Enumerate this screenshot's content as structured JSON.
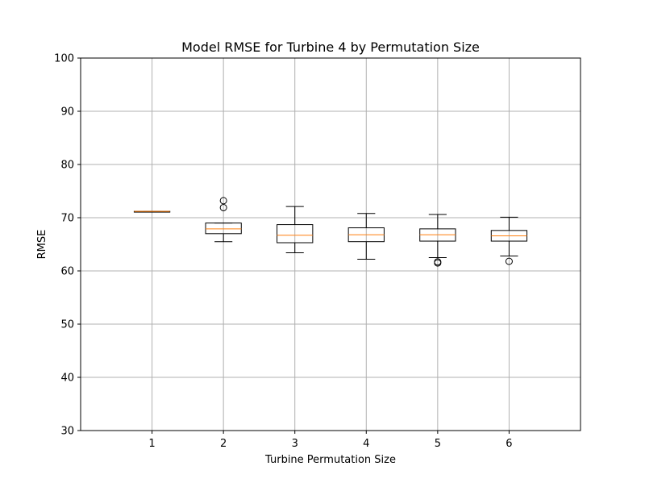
{
  "chart_data": {
    "type": "boxplot",
    "title": "Model RMSE for Turbine 4 by Permutation Size",
    "xlabel": "Turbine Permutation Size",
    "ylabel": "RMSE",
    "categories": [
      "1",
      "2",
      "3",
      "4",
      "5",
      "6"
    ],
    "ylim": [
      30,
      100
    ],
    "yticks": [
      "30",
      "40",
      "50",
      "60",
      "70",
      "80",
      "90",
      "100"
    ],
    "grid": true,
    "boxes": [
      {
        "category": "1",
        "whisker_low": 71.2,
        "q1": 71.2,
        "median": 71.2,
        "q3": 71.2,
        "whisker_high": 71.2,
        "outliers": []
      },
      {
        "category": "2",
        "whisker_low": 65.5,
        "q1": 67.0,
        "median": 67.9,
        "q3": 69.0,
        "whisker_high": 69.0,
        "outliers": [
          71.9,
          73.2
        ]
      },
      {
        "category": "3",
        "whisker_low": 63.4,
        "q1": 65.3,
        "median": 66.7,
        "q3": 68.7,
        "whisker_high": 72.1,
        "outliers": []
      },
      {
        "category": "4",
        "whisker_low": 62.2,
        "q1": 65.5,
        "median": 66.8,
        "q3": 68.1,
        "whisker_high": 70.8,
        "outliers": []
      },
      {
        "category": "5",
        "whisker_low": 62.5,
        "q1": 65.6,
        "median": 66.8,
        "q3": 67.9,
        "whisker_high": 70.6,
        "outliers": [
          61.5,
          61.7
        ]
      },
      {
        "category": "6",
        "whisker_low": 62.8,
        "q1": 65.6,
        "median": 66.6,
        "q3": 67.6,
        "whisker_high": 70.1,
        "outliers": [
          61.8
        ]
      }
    ],
    "colors": {
      "box": "#000000",
      "median": "#ff7f0e",
      "grid": "#b0b0b0",
      "outlier": "#000000"
    }
  }
}
